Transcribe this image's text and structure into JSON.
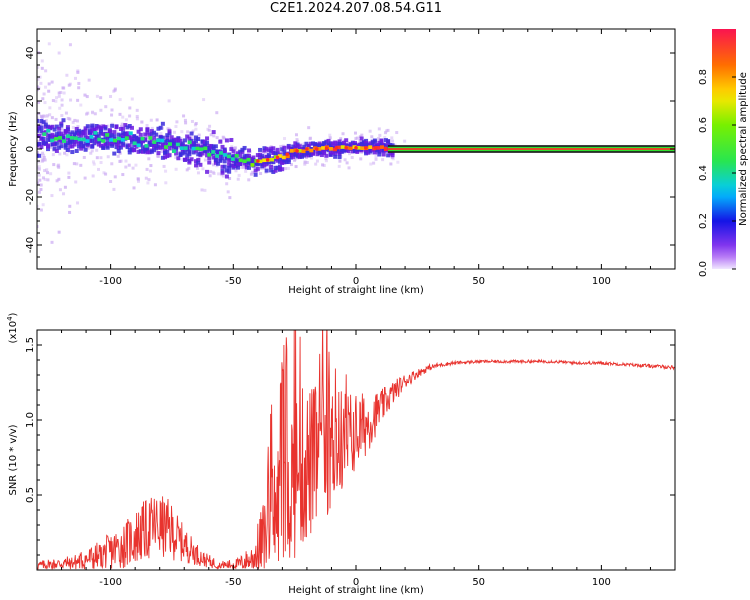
{
  "title": "C2E1.2024.207.08.54.G11",
  "colors": {
    "snr_line": "#e8332e",
    "noise": "#c9a7f2",
    "core": "#3b2bdc",
    "mid": "#00c8ff",
    "hot": "#30e030",
    "peak": "#ff3020"
  },
  "chart_data": [
    {
      "id": "spectrogram",
      "type": "heatmap",
      "xlabel": "Height of straight line (km)",
      "ylabel": "Frequency (Hz)",
      "xlim": [
        -130,
        130
      ],
      "ylim": [
        -50,
        50
      ],
      "xticks": [
        "-100",
        "-50",
        "0",
        "50",
        "100"
      ],
      "xtick_values": [
        -100,
        -50,
        0,
        50,
        100
      ],
      "yticks": [
        "40",
        "20",
        "0",
        "-20",
        "-40"
      ],
      "ytick_values": [
        40,
        20,
        0,
        -20,
        -40
      ],
      "colorbar": {
        "label": "Normalized spectral amplitude",
        "range": [
          0,
          1
        ],
        "ticks": [
          "0.0",
          "0.2",
          "0.4",
          "0.6",
          "0.8"
        ],
        "tick_values": [
          0.0,
          0.2,
          0.4,
          0.6,
          0.8
        ]
      },
      "ridge": {
        "x": [
          -125,
          -115,
          -105,
          -95,
          -85,
          -75,
          -65,
          -55,
          -45,
          -38,
          -30,
          -25,
          -20,
          -15,
          -10,
          -5,
          0,
          5,
          10,
          15,
          130
        ],
        "y": [
          5,
          5,
          5,
          4,
          3,
          2,
          0,
          -3,
          -5,
          -5,
          -3,
          -1,
          0,
          0,
          0.5,
          0.5,
          0.5,
          0.5,
          0.5,
          0,
          0
        ],
        "amplitude": [
          0.5,
          0.45,
          0.45,
          0.45,
          0.45,
          0.45,
          0.45,
          0.45,
          0.5,
          0.7,
          0.8,
          0.85,
          0.85,
          0.85,
          0.9,
          0.9,
          0.9,
          0.9,
          0.95,
          1.0,
          1.0
        ]
      }
    },
    {
      "id": "snr",
      "type": "line",
      "xlabel": "Height of straight line (km)",
      "ylabel": "SNR (10 * v/v)",
      "y_multiplier": "(x10",
      "y_multiplier_exp": "4",
      "y_multiplier_close": ")",
      "xlim": [
        -130,
        130
      ],
      "ylim": [
        0,
        1.6
      ],
      "xticks": [
        "-100",
        "-50",
        "0",
        "50",
        "100"
      ],
      "xtick_values": [
        -100,
        -50,
        0,
        50,
        100
      ],
      "yticks": [
        "0.5",
        "1.0",
        "1.5"
      ],
      "ytick_values": [
        0.5,
        1.0,
        1.5
      ],
      "envelope": {
        "x": [
          -130,
          -115,
          -105,
          -95,
          -88,
          -82,
          -76,
          -70,
          -62,
          -55,
          -48,
          -42,
          -38,
          -34,
          -30,
          -26,
          -22,
          -18,
          -14,
          -10,
          -6,
          -2,
          2,
          6,
          10,
          15,
          20,
          25,
          30,
          35,
          40,
          50,
          60,
          70,
          80,
          90,
          100,
          110,
          120,
          130
        ],
        "y": [
          0.03,
          0.05,
          0.09,
          0.16,
          0.24,
          0.3,
          0.27,
          0.17,
          0.07,
          0.03,
          0.04,
          0.08,
          0.2,
          0.35,
          0.5,
          0.6,
          0.68,
          0.72,
          0.78,
          0.82,
          0.86,
          0.9,
          0.94,
          1.0,
          1.08,
          1.18,
          1.26,
          1.31,
          1.35,
          1.37,
          1.38,
          1.39,
          1.39,
          1.39,
          1.39,
          1.38,
          1.38,
          1.37,
          1.36,
          1.35
        ],
        "noise": [
          0.03,
          0.05,
          0.1,
          0.15,
          0.2,
          0.22,
          0.2,
          0.12,
          0.05,
          0.03,
          0.04,
          0.1,
          0.25,
          0.4,
          0.5,
          0.55,
          0.55,
          0.52,
          0.48,
          0.42,
          0.36,
          0.3,
          0.25,
          0.18,
          0.12,
          0.08,
          0.05,
          0.03,
          0.02,
          0.015,
          0.012,
          0.01,
          0.01,
          0.01,
          0.01,
          0.01,
          0.01,
          0.01,
          0.012,
          0.012
        ]
      }
    }
  ]
}
